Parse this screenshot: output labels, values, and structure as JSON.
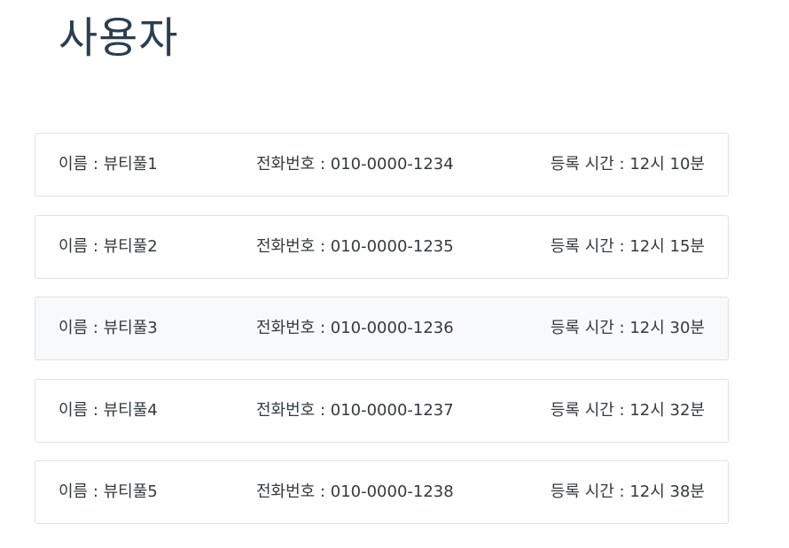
{
  "page": {
    "title": "사용자"
  },
  "users": [
    {
      "name": "이름 : 뷰티풀1",
      "phone": "전화번호 : 010-0000-1234",
      "time": "등록 시간 : 12시 10분"
    },
    {
      "name": "이름 : 뷰티풀2",
      "phone": "전화번호 : 010-0000-1235",
      "time": "등록 시간 : 12시 15분"
    },
    {
      "name": "이름 : 뷰티풀3",
      "phone": "전화번호 : 010-0000-1236",
      "time": "등록 시간 : 12시 30분"
    },
    {
      "name": "이름 : 뷰티풀4",
      "phone": "전화번호 : 010-0000-1237",
      "time": "등록 시간 : 12시 32분"
    },
    {
      "name": "이름 : 뷰티풀5",
      "phone": "전화번호 : 010-0000-1238",
      "time": "등록 시간 : 12시 38분"
    }
  ],
  "colors": {
    "title": "#2c3e50",
    "text": "#333a40",
    "border": "#dee2e6",
    "row_hover_bg": "#f8f9fa"
  }
}
